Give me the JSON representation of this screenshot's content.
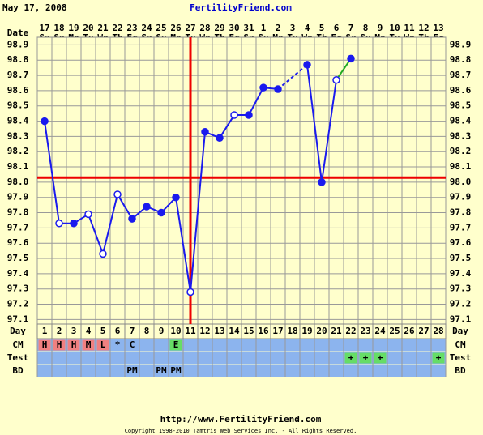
{
  "header": {
    "date": "May 17, 2008",
    "site": "FertilityFriend.com"
  },
  "chart_data": {
    "type": "line",
    "date_label": "Date",
    "categories": [
      "17",
      "18",
      "19",
      "20",
      "21",
      "22",
      "23",
      "24",
      "25",
      "26",
      "27",
      "28",
      "29",
      "30",
      "31",
      "1",
      "2",
      "3",
      "4",
      "5",
      "6",
      "7",
      "8",
      "9",
      "10",
      "11",
      "12",
      "13"
    ],
    "weekdays": [
      "Sa",
      "Su",
      "Mo",
      "Tu",
      "We",
      "Th",
      "Fr",
      "Sa",
      "Su",
      "Mo",
      "Tu",
      "We",
      "Th",
      "Fr",
      "Sa",
      "Su",
      "Mo",
      "Tu",
      "We",
      "Th",
      "Fr",
      "Sa",
      "Su",
      "Mo",
      "Tu",
      "We",
      "Th",
      "Fr"
    ],
    "series": [
      {
        "name": "Temperature",
        "color": "#1a1aee",
        "recent_color": "#22aa22",
        "values": [
          98.4,
          97.73,
          97.73,
          97.79,
          97.53,
          97.92,
          97.76,
          97.84,
          97.8,
          97.9,
          97.28,
          98.33,
          98.29,
          98.44,
          98.44,
          98.62,
          98.61,
          null,
          98.77,
          98.0,
          98.67,
          98.81,
          null,
          null,
          null,
          null,
          null,
          null
        ],
        "open": [
          false,
          true,
          false,
          true,
          true,
          true,
          false,
          false,
          false,
          false,
          true,
          false,
          false,
          true,
          false,
          false,
          false,
          false,
          false,
          false,
          true,
          false,
          false,
          false,
          false,
          false,
          false,
          false
        ]
      }
    ],
    "ylim": [
      97.07,
      98.95
    ],
    "yticks": [
      97.1,
      97.2,
      97.3,
      97.4,
      97.5,
      97.6,
      97.7,
      97.8,
      97.9,
      {
        "value": 98,
        "label": "98.0"
      },
      98.1,
      98.2,
      98.3,
      98.4,
      98.5,
      98.6,
      98.7,
      98.8,
      98.9
    ],
    "coverline": 98.03,
    "ovulation_day": 11,
    "marker_line_color": "#ee0000",
    "grid": true
  },
  "rows": {
    "day_label": "Day",
    "days": [
      1,
      2,
      3,
      4,
      5,
      6,
      7,
      8,
      9,
      10,
      11,
      12,
      13,
      14,
      15,
      16,
      17,
      18,
      19,
      20,
      21,
      22,
      23,
      24,
      25,
      26,
      27,
      28
    ],
    "colors": {
      "H": "#f08080",
      "M": "#f08080",
      "L": "#f08080",
      "E": "#66dd66",
      "+": "#66dd66"
    },
    "cm": {
      "label": "CM",
      "cells": [
        "H",
        "H",
        "H",
        "M",
        "L",
        "*",
        "C",
        null,
        null,
        "E",
        null,
        null,
        null,
        null,
        null,
        null,
        null,
        null,
        null,
        null,
        null,
        null,
        null,
        null,
        null,
        null,
        null,
        null
      ]
    },
    "test": {
      "label": "Test",
      "cells": [
        null,
        null,
        null,
        null,
        null,
        null,
        null,
        null,
        null,
        null,
        null,
        null,
        null,
        null,
        null,
        null,
        null,
        null,
        null,
        null,
        null,
        "+",
        "+",
        "+",
        null,
        null,
        null,
        "+"
      ]
    },
    "bd": {
      "label": "BD",
      "cells": [
        null,
        null,
        null,
        null,
        null,
        null,
        "PM",
        null,
        "PM",
        "PM",
        null,
        null,
        null,
        null,
        null,
        null,
        null,
        null,
        null,
        null,
        null,
        null,
        null,
        null,
        null,
        null,
        null,
        null
      ]
    }
  },
  "footer": {
    "url": "http://www.FertilityFriend.com",
    "copyright": "Copyright 1998-2010 Tamtris Web Services Inc. - All Rights Reserved."
  }
}
